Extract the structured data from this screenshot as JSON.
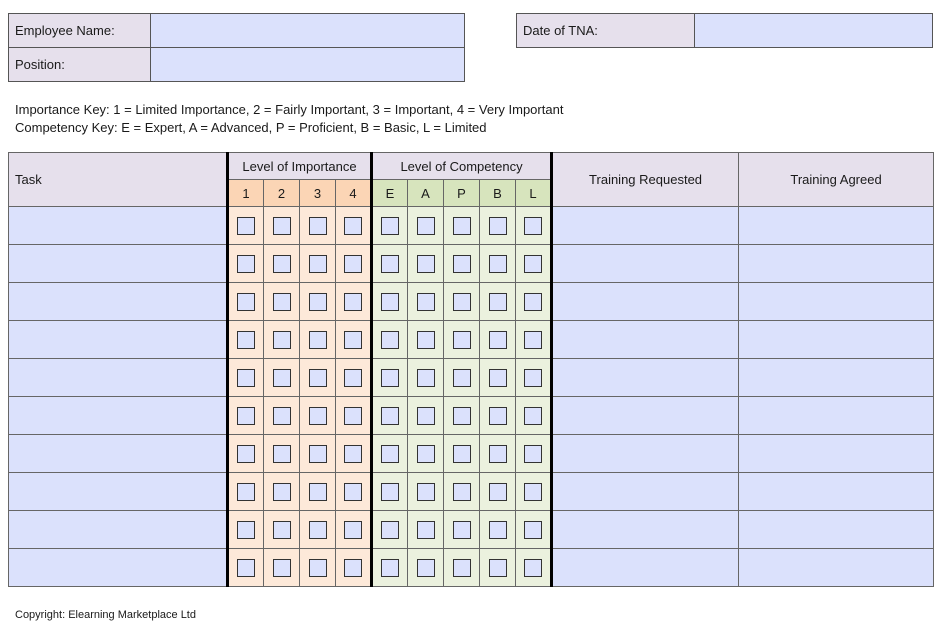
{
  "header": {
    "employee_name_label": "Employee Name:",
    "employee_name_value": "",
    "position_label": "Position:",
    "position_value": "",
    "date_label": "Date of TNA:",
    "date_value": ""
  },
  "keys": {
    "importance": "Importance Key:  1 = Limited Importance, 2 = Fairly Important, 3 = Important, 4 = Very Important",
    "competency": "Competency Key:  E = Expert, A = Advanced, P = Proficient, B = Basic, L = Limited"
  },
  "table": {
    "task_header": "Task",
    "importance_header": "Level of Importance",
    "importance_levels": [
      "1",
      "2",
      "3",
      "4"
    ],
    "competency_header": "Level of Competency",
    "competency_levels": [
      "E",
      "A",
      "P",
      "B",
      "L"
    ],
    "training_requested_header": "Training Requested",
    "training_agreed_header": "Training Agreed",
    "row_count": 10
  },
  "footer": {
    "copyright": "Copyright: Elearning Marketplace Ltd"
  },
  "colors": {
    "input_fill": "#dbe1fc",
    "label_fill": "#e6e0ec",
    "importance_header": "#fbd5b5",
    "importance_fill": "#fde9d9",
    "competency_header": "#d7e4bd",
    "competency_fill": "#ebf1de"
  }
}
